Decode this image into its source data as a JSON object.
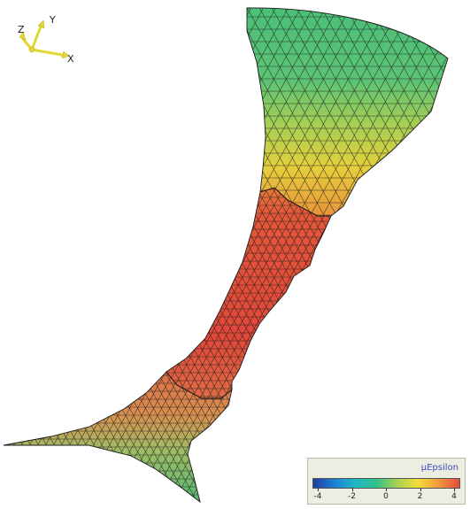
{
  "axes": {
    "x_label": "X",
    "y_label": "Y",
    "z_label": "Z"
  },
  "legend": {
    "title": "μEpsilon",
    "ticks": [
      "-4",
      "-2",
      "0",
      "2",
      "4"
    ],
    "range": [
      -4,
      4
    ],
    "colors": [
      "#1f3f9e",
      "#1c7fd6",
      "#20b8c8",
      "#30c089",
      "#a7d251",
      "#f2dd3a",
      "#f09a3b",
      "#e64b3c"
    ]
  },
  "colors": {
    "mesh_line": "#1a1a1a",
    "triad": "#e2d833",
    "low_strain": "#3fbf7a",
    "mid_strain": "#e8d03c",
    "high_strain": "#e24a38"
  }
}
